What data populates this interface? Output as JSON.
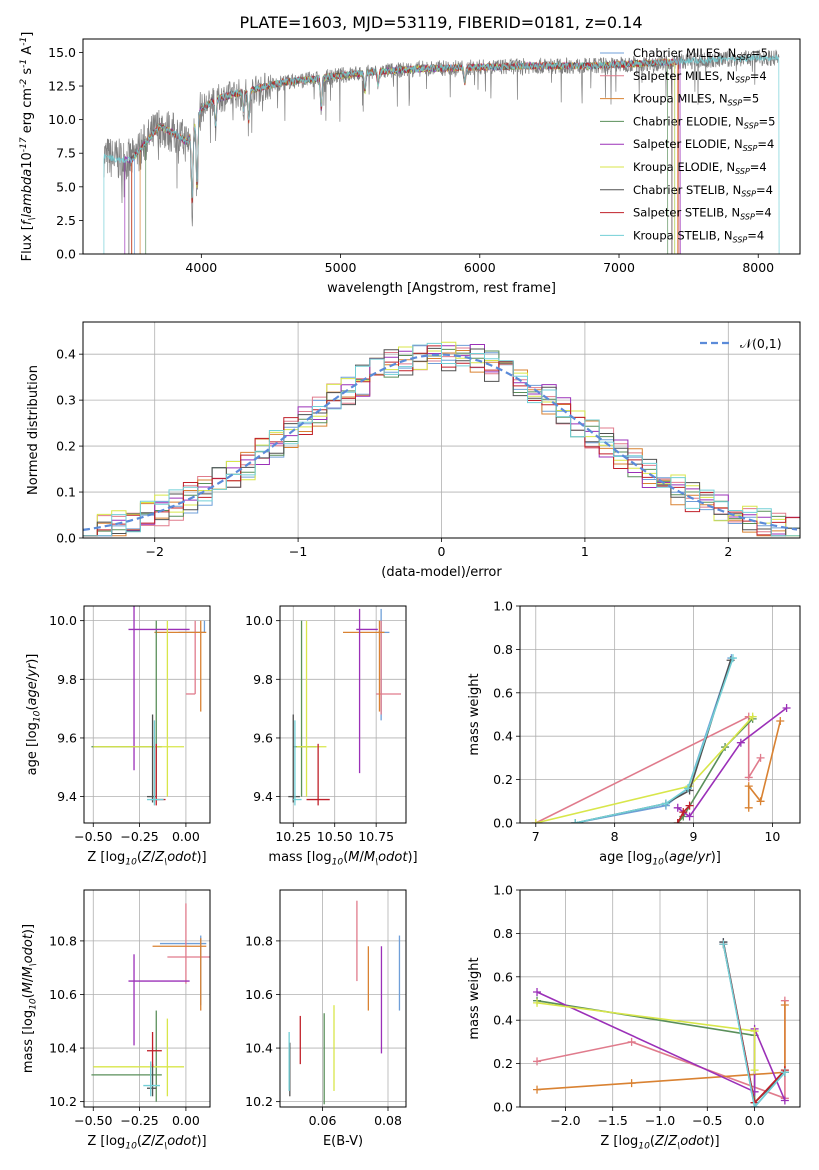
{
  "title": "PLATE=1603, MJD=53119, FIBERID=0181, z=0.14",
  "colors": {
    "spectrum_data": "#7f7f7f",
    "gaussian": "#5b8bd9"
  },
  "models": [
    {
      "label": "Chabrier MILES, N$_{SSP}$=5",
      "color": "#6f9fd8"
    },
    {
      "label": "Salpeter MILES, N$_{SSP}$=4",
      "color": "#e07b8c"
    },
    {
      "label": "Kroupa MILES, N$_{SSP}$=5",
      "color": "#d98232"
    },
    {
      "label": "Chabrier ELODIE, N$_{SSP}$=5",
      "color": "#5a8f5a"
    },
    {
      "label": "Salpeter ELODIE, N$_{SSP}$=4",
      "color": "#9b30b8"
    },
    {
      "label": "Kroupa ELODIE, N$_{SSP}$=4",
      "color": "#d8e64a"
    },
    {
      "label": "Chabrier STELIB, N$_{SSP}$=4",
      "color": "#505050"
    },
    {
      "label": "Salpeter STELIB, N$_{SSP}$=4",
      "color": "#c0202a"
    },
    {
      "label": "Kroupa STELIB, N$_{SSP}$=4",
      "color": "#72cfd6"
    }
  ],
  "chart_data": [
    {
      "id": "spectrum",
      "type": "line",
      "xlabel": "wavelength [Angstrom, rest frame]",
      "ylabel": "Flux [$f_\\lambda$10$^{-17}$ erg cm$^{-2}$ s$^{-1}$ A$^{-1}$]",
      "xlim": [
        3150,
        8300
      ],
      "ylim": [
        0,
        16
      ],
      "xticks": [
        4000,
        5000,
        6000,
        7000,
        8000
      ],
      "yticks": [
        0.0,
        2.5,
        5.0,
        7.5,
        10.0,
        12.5,
        15.0
      ],
      "ytick_labels": [
        "0.0",
        "2.5",
        "5.0",
        "7.5",
        "10.0",
        "12.5",
        "15.0"
      ],
      "grid": false,
      "legend": "top-right",
      "continuum": [
        [
          3300,
          7.3
        ],
        [
          3400,
          7.0
        ],
        [
          3500,
          7.0
        ],
        [
          3600,
          8.3
        ],
        [
          3700,
          9.5
        ],
        [
          3800,
          9.0
        ],
        [
          3900,
          8.3
        ],
        [
          4000,
          10.8
        ],
        [
          4100,
          11.5
        ],
        [
          4200,
          11.8
        ],
        [
          4400,
          12.3
        ],
        [
          4600,
          12.8
        ],
        [
          4800,
          13.0
        ],
        [
          5000,
          13.3
        ],
        [
          5300,
          13.6
        ],
        [
          5600,
          13.8
        ],
        [
          6000,
          13.9
        ],
        [
          6400,
          14.0
        ],
        [
          6800,
          14.0
        ],
        [
          7000,
          14.1
        ],
        [
          7200,
          14.2
        ],
        [
          7400,
          14.3
        ],
        [
          7600,
          14.4
        ],
        [
          7800,
          14.5
        ],
        [
          8000,
          14.6
        ],
        [
          8100,
          14.6
        ]
      ],
      "absorption_lines": [
        [
          3934,
          6.0
        ],
        [
          3969,
          5.5
        ],
        [
          4102,
          2.2
        ],
        [
          4304,
          1.5
        ],
        [
          4340,
          2.5
        ],
        [
          4861,
          2.5
        ],
        [
          5175,
          1.5
        ],
        [
          5270,
          1.0
        ],
        [
          5893,
          1.3
        ]
      ],
      "model_cutoffs": [
        [
          3520,
          7400
        ],
        [
          3500,
          7380
        ],
        [
          3560,
          7420
        ],
        [
          3600,
          7350
        ],
        [
          3450,
          7440
        ],
        [
          3500,
          7400
        ],
        [
          3480,
          7380
        ],
        [
          3500,
          7430
        ],
        [
          3300,
          8150
        ]
      ],
      "data_range": [
        3300,
        8150
      ]
    },
    {
      "id": "residuals",
      "type": "histogram",
      "xlabel": "(data-model)/error",
      "ylabel": "Normed distribution",
      "xlim": [
        -2.5,
        2.5
      ],
      "ylim": [
        0,
        0.47
      ],
      "xticks": [
        -2,
        -1,
        0,
        1,
        2
      ],
      "xtick_labels": [
        "−2",
        "−1",
        "0",
        "1",
        "2"
      ],
      "yticks": [
        0.0,
        0.1,
        0.2,
        0.3,
        0.4
      ],
      "ytick_labels": [
        "0.0",
        "0.1",
        "0.2",
        "0.3",
        "0.4"
      ],
      "grid": true,
      "legend": "top-right",
      "reference_label": "$\\mathcal{N}(0,1)$",
      "bin_width": 0.1
    },
    {
      "id": "age_vs_Z",
      "type": "scatter",
      "xlabel": "Z [log$_{10}$($Z/Z_\\odot$)]",
      "ylabel": "age  [log$_{10}$($age/yr$)]",
      "xlim": [
        -0.55,
        0.13
      ],
      "ylim": [
        9.31,
        10.05
      ],
      "xticks": [
        -0.5,
        -0.25,
        0.0
      ],
      "xtick_labels": [
        "−0.50",
        "−0.25",
        "0.00"
      ],
      "yticks": [
        9.4,
        9.6,
        9.8,
        10.0
      ],
      "ytick_labels": [
        "9.4",
        "9.6",
        "9.8",
        "10.0"
      ],
      "grid": true,
      "points": [
        {
          "x": 0.1,
          "xerr": [
            0.14,
            0.0
          ],
          "y": 9.96,
          "yerr": [
            0.0,
            0.04
          ]
        },
        {
          "x": 0.05,
          "xerr": [
            0.05,
            0.0
          ],
          "y": 9.75,
          "yerr": [
            0.0,
            0.25
          ]
        },
        {
          "x": 0.08,
          "xerr": [
            0.25,
            0.03
          ],
          "y": 9.96,
          "yerr": [
            0.27,
            0.04
          ]
        },
        {
          "x": -0.16,
          "xerr": [
            0.35,
            0.03
          ],
          "y": 9.57,
          "yerr": [
            0.17,
            0.43
          ]
        },
        {
          "x": -0.28,
          "xerr": [
            0.03,
            0.3
          ],
          "y": 9.97,
          "yerr": [
            0.48,
            0.08
          ]
        },
        {
          "x": -0.1,
          "xerr": [
            0.4,
            0.09
          ],
          "y": 9.57,
          "yerr": [
            0.17,
            0.43
          ]
        },
        {
          "x": -0.18,
          "xerr": [
            0.03,
            0.02
          ],
          "y": 9.4,
          "yerr": [
            0.02,
            0.28
          ]
        },
        {
          "x": -0.16,
          "xerr": [
            0.03,
            0.05
          ],
          "y": 9.39,
          "yerr": [
            0.02,
            0.19
          ]
        },
        {
          "x": -0.17,
          "xerr": [
            0.04,
            0.05
          ],
          "y": 9.39,
          "yerr": [
            0.02,
            0.27
          ]
        }
      ]
    },
    {
      "id": "age_vs_mass",
      "type": "scatter",
      "xlabel": "mass [log$_{10}$($M/M_\\odot$)]",
      "ylabel": "",
      "xlim": [
        10.17,
        10.93
      ],
      "ylim": [
        9.31,
        10.05
      ],
      "xticks": [
        10.25,
        10.5,
        10.75
      ],
      "xtick_labels": [
        "10.25",
        "10.50",
        "10.75"
      ],
      "yticks": [
        9.4,
        9.6,
        9.8,
        10.0
      ],
      "ytick_labels": [
        "9.4",
        "9.6",
        "9.8",
        "10.0"
      ],
      "grid": true,
      "points": [
        {
          "x": 10.78,
          "xerr": [
            0.02,
            0.05
          ],
          "y": 9.96,
          "yerr": [
            0.3,
            0.08
          ]
        },
        {
          "x": 10.78,
          "xerr": [
            0.03,
            0.12
          ],
          "y": 9.75,
          "yerr": [
            0.07,
            0.25
          ]
        },
        {
          "x": 10.77,
          "xerr": [
            0.22,
            0.03
          ],
          "y": 9.96,
          "yerr": [
            0.27,
            0.04
          ]
        },
        {
          "x": 10.3,
          "xerr": [
            0.05,
            0.09
          ],
          "y": 9.57,
          "yerr": [
            0.17,
            0.43
          ]
        },
        {
          "x": 10.65,
          "xerr": [
            0.02,
            0.11
          ],
          "y": 9.97,
          "yerr": [
            0.49,
            0.07
          ]
        },
        {
          "x": 10.33,
          "xerr": [
            0.06,
            0.12
          ],
          "y": 9.57,
          "yerr": [
            0.17,
            0.43
          ]
        },
        {
          "x": 10.25,
          "xerr": [
            0.03,
            0.04
          ],
          "y": 9.4,
          "yerr": [
            0.02,
            0.28
          ]
        },
        {
          "x": 10.4,
          "xerr": [
            0.07,
            0.07
          ],
          "y": 9.39,
          "yerr": [
            0.02,
            0.19
          ]
        },
        {
          "x": 10.26,
          "xerr": [
            0.01,
            0.04
          ],
          "y": 9.39,
          "yerr": [
            0.02,
            0.27
          ]
        }
      ]
    },
    {
      "id": "massweight_vs_age",
      "type": "line",
      "xlabel": "age  [log$_{10}$($age/yr$)]",
      "ylabel": "mass weight",
      "xlim": [
        6.8,
        10.35
      ],
      "ylim": [
        0.0,
        1.0
      ],
      "xticks": [
        7,
        8,
        9,
        10
      ],
      "xtick_labels": [
        "7",
        "8",
        "9",
        "10"
      ],
      "yticks": [
        0.0,
        0.2,
        0.4,
        0.6,
        0.8,
        1.0
      ],
      "ytick_labels": [
        "0.0",
        "0.2",
        "0.4",
        "0.6",
        "0.8",
        "1.0"
      ],
      "grid": true,
      "series": [
        [
          [
            7.5,
            0.0
          ],
          [
            8.65,
            0.08
          ],
          [
            8.93,
            0.16
          ],
          [
            9.48,
            0.76
          ]
        ],
        [
          [
            7.0,
            0.0
          ],
          [
            9.7,
            0.49
          ],
          [
            9.7,
            0.21
          ],
          [
            9.85,
            0.3
          ]
        ],
        [
          [
            9.7,
            0.07
          ],
          [
            9.7,
            0.17
          ],
          [
            9.85,
            0.1
          ],
          [
            10.1,
            0.47
          ]
        ],
        [
          [
            8.8,
            0.0
          ],
          [
            8.87,
            0.03
          ],
          [
            9.4,
            0.35
          ],
          [
            9.75,
            0.48
          ]
        ],
        [
          [
            8.8,
            0.07
          ],
          [
            8.95,
            0.03
          ],
          [
            9.6,
            0.37
          ],
          [
            10.18,
            0.53
          ]
        ],
        [
          [
            7.0,
            0.0
          ],
          [
            8.95,
            0.17
          ],
          [
            9.75,
            0.49
          ]
        ],
        [
          [
            7.5,
            0.0
          ],
          [
            8.65,
            0.09
          ],
          [
            8.95,
            0.15
          ],
          [
            9.47,
            0.75
          ]
        ],
        [
          [
            8.8,
            0.0
          ],
          [
            8.87,
            0.05
          ],
          [
            8.95,
            0.08
          ]
        ],
        [
          [
            7.5,
            0.0
          ],
          [
            8.65,
            0.09
          ],
          [
            8.93,
            0.16
          ],
          [
            9.5,
            0.76
          ]
        ]
      ]
    },
    {
      "id": "mass_vs_Z",
      "type": "scatter",
      "xlabel": "Z [log$_{10}$($Z/Z_\\odot$)]",
      "ylabel": "mass [log$_{10}$($M/M_\\odot$)]",
      "xlim": [
        -0.55,
        0.13
      ],
      "ylim": [
        10.18,
        10.99
      ],
      "xticks": [
        -0.5,
        -0.25,
        0.0
      ],
      "xtick_labels": [
        "−0.50",
        "−0.25",
        "0.00"
      ],
      "yticks": [
        10.2,
        10.4,
        10.6,
        10.8
      ],
      "ytick_labels": [
        "10.2",
        "10.4",
        "10.6",
        "10.8"
      ],
      "grid": true,
      "points": [
        {
          "x": 0.08,
          "xerr": [
            0.22,
            0.03
          ],
          "y": 10.79,
          "yerr": [
            0.23,
            0.03
          ]
        },
        {
          "x": 0.0,
          "xerr": [
            0.1,
            0.13
          ],
          "y": 10.74,
          "yerr": [
            0.1,
            0.2
          ]
        },
        {
          "x": 0.08,
          "xerr": [
            0.26,
            0.03
          ],
          "y": 10.78,
          "yerr": [
            0.24,
            0.03
          ]
        },
        {
          "x": -0.16,
          "xerr": [
            0.35,
            0.03
          ],
          "y": 10.3,
          "yerr": [
            0.1,
            0.24
          ]
        },
        {
          "x": -0.28,
          "xerr": [
            0.03,
            0.3
          ],
          "y": 10.65,
          "yerr": [
            0.24,
            0.1
          ]
        },
        {
          "x": -0.1,
          "xerr": [
            0.4,
            0.09
          ],
          "y": 10.33,
          "yerr": [
            0.11,
            0.18
          ]
        },
        {
          "x": -0.18,
          "xerr": [
            0.03,
            0.02
          ],
          "y": 10.25,
          "yerr": [
            0.03,
            0.09
          ]
        },
        {
          "x": -0.18,
          "xerr": [
            0.03,
            0.05
          ],
          "y": 10.39,
          "yerr": [
            0.06,
            0.07
          ]
        },
        {
          "x": -0.19,
          "xerr": [
            0.04,
            0.05
          ],
          "y": 10.26,
          "yerr": [
            0.04,
            0.09
          ]
        }
      ]
    },
    {
      "id": "mass_vs_ebv",
      "type": "scatter",
      "xlabel": "E(B-V)",
      "ylabel": "",
      "xlim": [
        0.047,
        0.0855
      ],
      "ylim": [
        10.18,
        10.99
      ],
      "xticks": [
        0.06,
        0.08
      ],
      "xtick_labels": [
        "0.06",
        "0.08"
      ],
      "yticks": [
        10.2,
        10.4,
        10.6,
        10.8
      ],
      "ytick_labels": [
        "10.2",
        "10.4",
        "10.6",
        "10.8"
      ],
      "grid": true,
      "points": [
        {
          "x": 0.0835,
          "xerr": [
            0,
            0
          ],
          "y": 10.68,
          "yerr": [
            0.14,
            0.14
          ]
        },
        {
          "x": 0.0705,
          "xerr": [
            0,
            0
          ],
          "y": 10.8,
          "yerr": [
            0.15,
            0.15
          ]
        },
        {
          "x": 0.074,
          "xerr": [
            0,
            0
          ],
          "y": 10.66,
          "yerr": [
            0.12,
            0.12
          ]
        },
        {
          "x": 0.0605,
          "xerr": [
            0,
            0
          ],
          "y": 10.36,
          "yerr": [
            0.17,
            0.17
          ]
        },
        {
          "x": 0.078,
          "xerr": [
            0,
            0
          ],
          "y": 10.58,
          "yerr": [
            0.2,
            0.2
          ]
        },
        {
          "x": 0.0635,
          "xerr": [
            0,
            0
          ],
          "y": 10.4,
          "yerr": [
            0.16,
            0.16
          ]
        },
        {
          "x": 0.05,
          "xerr": [
            0,
            0
          ],
          "y": 10.32,
          "yerr": [
            0.1,
            0.1
          ]
        },
        {
          "x": 0.0532,
          "xerr": [
            0,
            0
          ],
          "y": 10.43,
          "yerr": [
            0.09,
            0.09
          ]
        },
        {
          "x": 0.0498,
          "xerr": [
            0,
            0
          ],
          "y": 10.35,
          "yerr": [
            0.11,
            0.11
          ]
        }
      ]
    },
    {
      "id": "massweight_vs_Z",
      "type": "line",
      "xlabel": "Z [log$_{10}$($Z/Z_\\odot$)]",
      "ylabel": "mass weight",
      "xlim": [
        -2.48,
        0.48
      ],
      "ylim": [
        0.0,
        1.0
      ],
      "xticks": [
        -2.0,
        -1.5,
        -1.0,
        -0.5,
        0.0
      ],
      "xtick_labels": [
        "−2.0",
        "−1.5",
        "−1.0",
        "−0.5",
        "0.0"
      ],
      "yticks": [
        0.0,
        0.2,
        0.4,
        0.6,
        0.8,
        1.0
      ],
      "ytick_labels": [
        "0.0",
        "0.2",
        "0.4",
        "0.6",
        "0.8",
        "1.0"
      ],
      "grid": true,
      "series": [
        [
          [
            -0.33,
            0.76
          ],
          [
            0.0,
            0.0
          ],
          [
            0.32,
            0.16
          ]
        ],
        [
          [
            -2.3,
            0.21
          ],
          [
            -1.3,
            0.3
          ],
          [
            0.32,
            0.04
          ],
          [
            0.32,
            0.49
          ]
        ],
        [
          [
            -2.3,
            0.08
          ],
          [
            -1.3,
            0.11
          ],
          [
            0.32,
            0.16
          ],
          [
            0.32,
            0.47
          ]
        ],
        [
          [
            -2.3,
            0.49
          ],
          [
            0.0,
            0.33
          ],
          [
            0.0,
            0.02
          ],
          [
            0.32,
            0.16
          ]
        ],
        [
          [
            -2.3,
            0.53
          ],
          [
            0.0,
            0.07
          ],
          [
            0.0,
            0.36
          ],
          [
            0.32,
            0.03
          ]
        ],
        [
          [
            -2.3,
            0.48
          ],
          [
            0.0,
            0.35
          ],
          [
            0.0,
            0.17
          ]
        ],
        [
          [
            -0.33,
            0.76
          ],
          [
            0.0,
            0.02
          ],
          [
            0.32,
            0.16
          ]
        ],
        [
          [
            -0.33,
            0.75
          ],
          [
            0.0,
            0.02
          ],
          [
            0.32,
            0.17
          ]
        ],
        [
          [
            -0.33,
            0.75
          ],
          [
            0.0,
            0.0
          ],
          [
            0.32,
            0.16
          ]
        ]
      ]
    }
  ]
}
